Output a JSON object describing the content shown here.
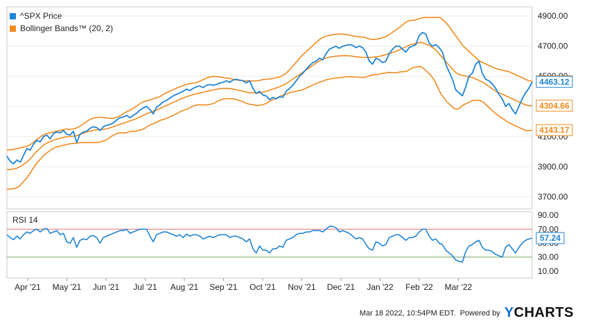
{
  "chart_data": [
    {
      "type": "line",
      "series": [
        {
          "name": "^SPX Price",
          "color": "#1f84d6",
          "last_value": "4463.12",
          "values": [
            3970,
            3935,
            3920,
            3945,
            3930,
            3975,
            4020,
            4010,
            4050,
            4075,
            4065,
            4100,
            4110,
            4085,
            4120,
            4130,
            4125,
            4140,
            4115,
            4110,
            4135,
            4060,
            4115,
            4130,
            4135,
            4155,
            4165,
            4160,
            4140,
            4165,
            4175,
            4180,
            4190,
            4210,
            4225,
            4230,
            4240,
            4225,
            4240,
            4255,
            4275,
            4290,
            4300,
            4280,
            4250,
            4295,
            4310,
            4330,
            4340,
            4355,
            4370,
            4380,
            4390,
            4400,
            4415,
            4405,
            4420,
            4430,
            4435,
            4425,
            4440,
            4445,
            4440,
            4445,
            4455,
            4460,
            4470,
            4460,
            4475,
            4480,
            4475,
            4470,
            4455,
            4470,
            4420,
            4385,
            4400,
            4375,
            4370,
            4345,
            4360,
            4350,
            4365,
            4360,
            4400,
            4420,
            4440,
            4470,
            4500,
            4520,
            4545,
            4570,
            4590,
            4600,
            4620,
            4610,
            4650,
            4680,
            4690,
            4700,
            4685,
            4700,
            4705,
            4710,
            4705,
            4690,
            4700,
            4690,
            4660,
            4600,
            4580,
            4620,
            4610,
            4590,
            4600,
            4650,
            4680,
            4700,
            4700,
            4680,
            4660,
            4690,
            4700,
            4710,
            4770,
            4790,
            4780,
            4720,
            4700,
            4710,
            4690,
            4660,
            4580,
            4530,
            4480,
            4410,
            4390,
            4370,
            4430,
            4500,
            4520,
            4580,
            4600,
            4520,
            4480,
            4470,
            4450,
            4420,
            4380,
            4350,
            4300,
            4320,
            4280,
            4250,
            4300,
            4350,
            4390,
            4420,
            4463
          ]
        },
        {
          "name": "Bollinger Bands™ (20, 2)",
          "color": "#f08a1c"
        }
      ],
      "upper_band": [
        4010,
        4012,
        4015,
        4020,
        4025,
        4030,
        4035,
        4045,
        4060,
        4080,
        4095,
        4110,
        4120,
        4125,
        4130,
        4135,
        4140,
        4145,
        4150,
        4148,
        4150,
        4155,
        4165,
        4180,
        4195,
        4210,
        4220,
        4225,
        4228,
        4228,
        4225,
        4222,
        4220,
        4225,
        4232,
        4245,
        4260,
        4270,
        4280,
        4295,
        4310,
        4325,
        4335,
        4340,
        4345,
        4355,
        4360,
        4370,
        4385,
        4395,
        4405,
        4415,
        4425,
        4432,
        4440,
        4448,
        4452,
        4455,
        4460,
        4470,
        4480,
        4490,
        4495,
        4500,
        4498,
        4495,
        4490,
        4488,
        4485,
        4480,
        4475,
        4472,
        4470,
        4470,
        4470,
        4468,
        4470,
        4472,
        4478,
        4480,
        4482,
        4485,
        4490,
        4495,
        4505,
        4520,
        4540,
        4565,
        4590,
        4615,
        4640,
        4660,
        4680,
        4700,
        4720,
        4740,
        4755,
        4765,
        4770,
        4775,
        4778,
        4780,
        4780,
        4778,
        4775,
        4770,
        4765,
        4762,
        4760,
        4758,
        4750,
        4745,
        4745,
        4748,
        4752,
        4760,
        4770,
        4785,
        4800,
        4815,
        4830,
        4850,
        4865,
        4870,
        4872,
        4878,
        4885,
        4890,
        4890,
        4890,
        4890,
        4890,
        4890,
        4870,
        4850,
        4820,
        4790,
        4760,
        4730,
        4700,
        4680,
        4660,
        4640,
        4620,
        4600,
        4590,
        4580,
        4570,
        4560,
        4550,
        4545,
        4540,
        4535,
        4530,
        4520,
        4510,
        4500,
        4490,
        4480,
        4470,
        4466
      ],
      "middle_band": [
        3880,
        3882,
        3885,
        3890,
        3900,
        3915,
        3930,
        3950,
        3975,
        4000,
        4020,
        4040,
        4055,
        4065,
        4075,
        4082,
        4088,
        4093,
        4098,
        4100,
        4102,
        4105,
        4112,
        4120,
        4128,
        4135,
        4140,
        4143,
        4145,
        4148,
        4150,
        4155,
        4162,
        4170,
        4178,
        4185,
        4192,
        4200,
        4208,
        4215,
        4225,
        4235,
        4245,
        4255,
        4263,
        4272,
        4280,
        4290,
        4300,
        4310,
        4320,
        4330,
        4340,
        4350,
        4358,
        4366,
        4373,
        4380,
        4385,
        4390,
        4395,
        4400,
        4405,
        4410,
        4415,
        4418,
        4420,
        4420,
        4418,
        4415,
        4410,
        4405,
        4400,
        4395,
        4392,
        4390,
        4388,
        4390,
        4395,
        4400,
        4408,
        4415,
        4422,
        4430,
        4440,
        4450,
        4465,
        4480,
        4495,
        4510,
        4525,
        4540,
        4555,
        4570,
        4585,
        4600,
        4610,
        4620,
        4625,
        4630,
        4633,
        4635,
        4636,
        4637,
        4636,
        4634,
        4630,
        4628,
        4626,
        4625,
        4625,
        4626,
        4628,
        4630,
        4635,
        4640,
        4648,
        4655,
        4662,
        4670,
        4680,
        4690,
        4700,
        4710,
        4715,
        4720,
        4725,
        4720,
        4710,
        4700,
        4685,
        4665,
        4640,
        4615,
        4590,
        4565,
        4540,
        4520,
        4510,
        4505,
        4500,
        4495,
        4490,
        4480,
        4470,
        4460,
        4445,
        4430,
        4415,
        4400,
        4390,
        4380,
        4370,
        4360,
        4350,
        4340,
        4330,
        4320,
        4310,
        4305,
        4304
      ],
      "lower_band": [
        3750,
        3752,
        3755,
        3760,
        3775,
        3800,
        3825,
        3855,
        3890,
        3920,
        3945,
        3970,
        3990,
        4005,
        4020,
        4030,
        4036,
        4041,
        4046,
        4052,
        4054,
        4055,
        4059,
        4060,
        4061,
        4060,
        4060,
        4061,
        4062,
        4068,
        4075,
        4088,
        4104,
        4115,
        4124,
        4125,
        4124,
        4130,
        4136,
        4135,
        4140,
        4145,
        4155,
        4170,
        4181,
        4189,
        4200,
        4210,
        4215,
        4225,
        4235,
        4245,
        4255,
        4268,
        4276,
        4284,
        4294,
        4305,
        4310,
        4310,
        4310,
        4310,
        4315,
        4320,
        4332,
        4341,
        4350,
        4352,
        4351,
        4350,
        4345,
        4338,
        4330,
        4320,
        4314,
        4312,
        4306,
        4308,
        4312,
        4320,
        4334,
        4345,
        4354,
        4365,
        4375,
        4380,
        4390,
        4395,
        4400,
        4405,
        4410,
        4420,
        4430,
        4440,
        4450,
        4460,
        4465,
        4475,
        4480,
        4485,
        4488,
        4490,
        4492,
        4496,
        4497,
        4498,
        4495,
        4494,
        4492,
        4492,
        4500,
        4507,
        4511,
        4512,
        4518,
        4520,
        4526,
        4525,
        4524,
        4525,
        4530,
        4530,
        4535,
        4550,
        4558,
        4562,
        4565,
        4550,
        4530,
        4510,
        4480,
        4440,
        4390,
        4360,
        4330,
        4310,
        4290,
        4280,
        4290,
        4310,
        4320,
        4330,
        4340,
        4340,
        4340,
        4330,
        4310,
        4290,
        4270,
        4250,
        4235,
        4220,
        4205,
        4190,
        4180,
        4170,
        4160,
        4150,
        4140,
        4140,
        4143
      ],
      "band_labels": {
        "upper": "4466.16",
        "middle": "4304.66",
        "lower": "4143.17"
      },
      "y_ticks": [
        "4900.00",
        "4700.00",
        "4500.00",
        "4300.00",
        "4100.00",
        "3900.00",
        "3700.00"
      ],
      "ylim": [
        3620,
        4960
      ]
    },
    {
      "type": "line",
      "title": "RSI 14",
      "series": [
        {
          "name": "RSI 14",
          "color": "#1f84d6",
          "last_value": "57.24",
          "values": [
            62,
            58,
            55,
            60,
            56,
            62,
            66,
            64,
            68,
            70,
            66,
            70,
            71,
            64,
            66,
            68,
            62,
            64,
            52,
            50,
            58,
            44,
            54,
            56,
            55,
            60,
            61,
            58,
            50,
            58,
            60,
            62,
            64,
            66,
            68,
            68,
            70,
            64,
            66,
            68,
            70,
            70,
            70,
            60,
            52,
            62,
            64,
            66,
            66,
            64,
            62,
            60,
            62,
            58,
            63,
            60,
            62,
            62,
            60,
            56,
            58,
            60,
            58,
            60,
            62,
            62,
            62,
            58,
            60,
            60,
            58,
            56,
            52,
            56,
            42,
            36,
            46,
            40,
            40,
            36,
            42,
            42,
            46,
            44,
            54,
            56,
            58,
            62,
            64,
            64,
            66,
            66,
            68,
            68,
            68,
            66,
            70,
            74,
            74,
            72,
            66,
            68,
            66,
            64,
            60,
            56,
            58,
            56,
            48,
            42,
            40,
            52,
            50,
            46,
            48,
            58,
            60,
            62,
            62,
            58,
            54,
            58,
            58,
            60,
            66,
            70,
            70,
            60,
            54,
            56,
            50,
            48,
            40,
            36,
            32,
            26,
            24,
            23,
            38,
            46,
            48,
            52,
            54,
            44,
            40,
            40,
            38,
            34,
            32,
            30,
            44,
            48,
            42,
            36,
            44,
            50,
            54,
            56,
            57
          ]
        }
      ],
      "y_ticks": [
        "90.00",
        "70.00",
        "50.00",
        "30.00",
        "10.00"
      ],
      "ylim": [
        0,
        95
      ],
      "overbought": 70,
      "oversold": 30
    }
  ],
  "x_axis": {
    "ticks": [
      "Apr '21",
      "May '21",
      "Jun '21",
      "Jul '21",
      "Aug '21",
      "Sep '21",
      "Oct '21",
      "Nov '21",
      "Dec '21",
      "Jan '22",
      "Feb '22",
      "Mar '22"
    ]
  },
  "footer": {
    "timestamp": "Mar 18 2022, 10:54PM EDT.",
    "powered_by": "Powered by",
    "logo_y": "Y",
    "logo_rest": "CHARTS"
  }
}
